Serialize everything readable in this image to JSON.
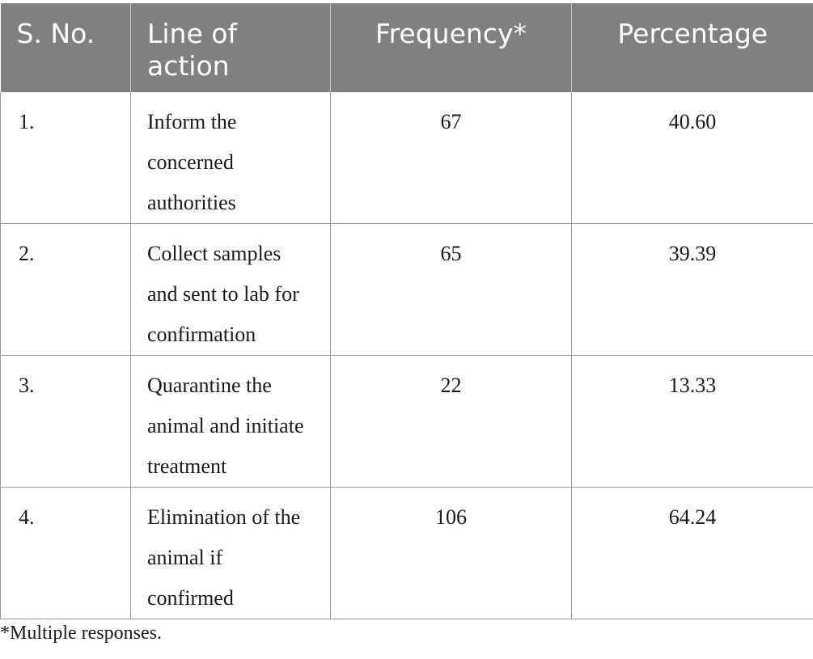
{
  "table": {
    "headers": [
      "S. No.",
      "Line of action",
      "Frequency*",
      "Percentage"
    ],
    "rows": [
      {
        "sno": "1.",
        "action": "Inform the concerned authorities",
        "frequency": "67",
        "percentage": "40.60"
      },
      {
        "sno": "2.",
        "action": "Collect samples and sent to lab for confirmation",
        "frequency": "65",
        "percentage": "39.39"
      },
      {
        "sno": "3.",
        "action": "Quarantine the animal and initiate treatment",
        "frequency": "22",
        "percentage": "13.33"
      },
      {
        "sno": "4.",
        "action": "Elimination of the animal if confirmed",
        "frequency": "106",
        "percentage": "64.24"
      }
    ]
  },
  "footnote": "*Multiple responses."
}
